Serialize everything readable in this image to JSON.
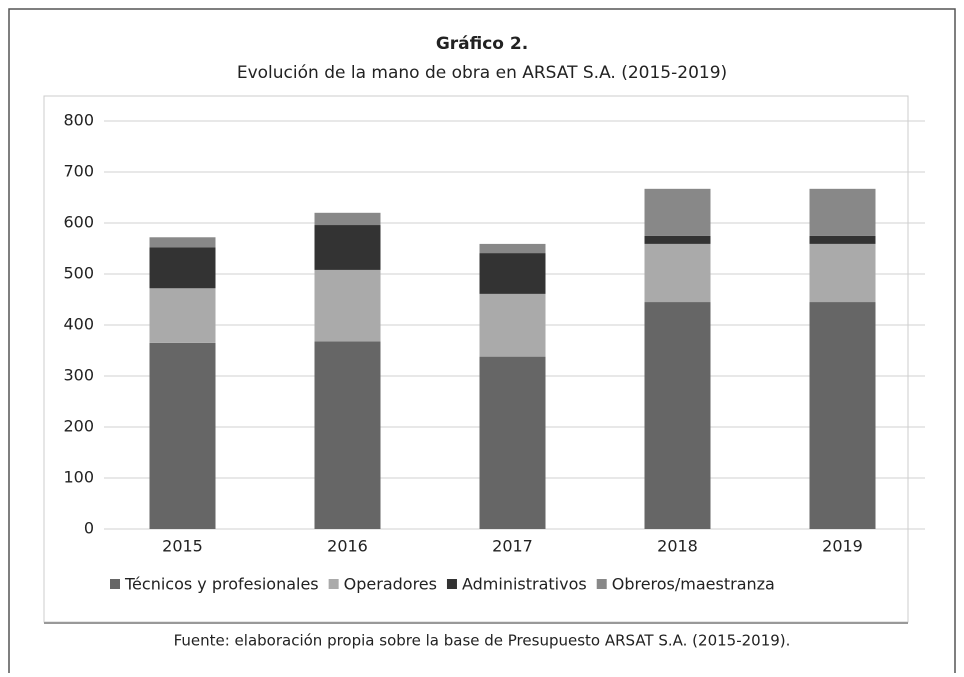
{
  "chart_data": {
    "type": "stacked_bar",
    "title": "Gráfico 2.",
    "subtitle": "Evolución de la mano de obra en ARSAT S.A. (2015-2019)",
    "source": "Fuente: elaboración propia sobre la base de Presupuesto ARSAT S.A. (2015-2019).",
    "categories": [
      "2015",
      "2016",
      "2017",
      "2018",
      "2019"
    ],
    "series": [
      {
        "name": "Técnicos y profesionales",
        "color": "#666666",
        "values": [
          365,
          368,
          338,
          445,
          445
        ]
      },
      {
        "name": "Operadores",
        "color": "#aaaaaa",
        "values": [
          107,
          140,
          123,
          114,
          114
        ]
      },
      {
        "name": "Administrativos",
        "color": "#333333",
        "values": [
          80,
          88,
          80,
          16,
          16
        ]
      },
      {
        "name": "Obreros/maestranza",
        "color": "#888888",
        "values": [
          20,
          24,
          18,
          92,
          92
        ]
      }
    ],
    "ylim": [
      0,
      800
    ],
    "yticks": [
      0,
      100,
      200,
      300,
      400,
      500,
      600,
      700,
      800
    ],
    "grid": true
  }
}
